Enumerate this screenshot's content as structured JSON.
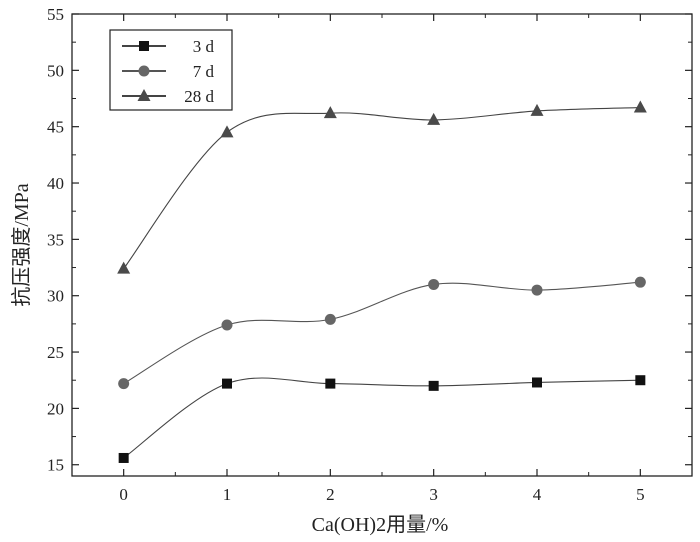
{
  "chart_data": {
    "type": "line",
    "title": "",
    "xlabel": "Ca(OH)2用量/%",
    "ylabel": "抗压强度/MPa",
    "x": [
      0,
      1,
      2,
      3,
      4,
      5
    ],
    "xticks": [
      "0",
      "1",
      "2",
      "3",
      "4",
      "5"
    ],
    "xlim": [
      -0.5,
      5.5
    ],
    "ylim": [
      14,
      55
    ],
    "yticks": [
      "15",
      "20",
      "25",
      "30",
      "35",
      "40",
      "45",
      "50",
      "55"
    ],
    "grid": false,
    "legend_position": "top-left",
    "smoothed": true,
    "series": [
      {
        "name": "3 d",
        "marker": "square",
        "color": "#111111",
        "line_color": "#444444",
        "values": [
          15.6,
          22.2,
          22.2,
          22.0,
          22.3,
          22.5
        ]
      },
      {
        "name": "7 d",
        "marker": "circle",
        "color": "#666666",
        "line_color": "#555555",
        "values": [
          22.2,
          27.4,
          27.9,
          31.0,
          30.5,
          31.2
        ]
      },
      {
        "name": "28 d",
        "marker": "triangle",
        "color": "#4a4a4a",
        "line_color": "#444444",
        "values": [
          32.4,
          44.5,
          46.2,
          45.6,
          46.4,
          46.7
        ]
      }
    ]
  }
}
